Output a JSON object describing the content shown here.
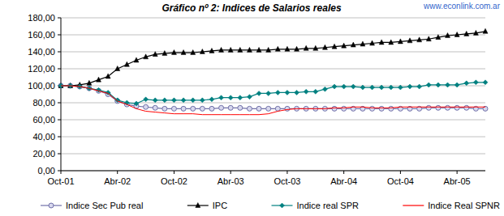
{
  "chart_data": {
    "type": "line",
    "title": "Gráfico nº 2: Indices de Salarios reales",
    "annotations": [
      {
        "text": "www.econlink.com.ar"
      }
    ],
    "categories": [
      "Oct-01",
      null,
      null,
      null,
      null,
      null,
      "Abr-02",
      null,
      null,
      null,
      null,
      null,
      "Oct-02",
      null,
      null,
      null,
      null,
      null,
      "Abr-03",
      null,
      null,
      null,
      null,
      null,
      "Oct-03",
      null,
      null,
      null,
      null,
      null,
      "Abr-04",
      null,
      null,
      null,
      null,
      null,
      "Oct-04",
      null,
      null,
      null,
      null,
      null,
      "Abr-05",
      null,
      null,
      null
    ],
    "series": [
      {
        "name": "Indice Sec Pub real",
        "color": "#7070a8",
        "marker": "circle",
        "line_style": "solid",
        "values": [
          100,
          100,
          99,
          97,
          94,
          90,
          82,
          78,
          76,
          75,
          74,
          73,
          73,
          73,
          73,
          73,
          73,
          74,
          74,
          74,
          73,
          73,
          73,
          73,
          73,
          73,
          73,
          73,
          73,
          73,
          73,
          73,
          73,
          73,
          73,
          73,
          73,
          73,
          73,
          74,
          74,
          74,
          74,
          74,
          73,
          73
        ]
      },
      {
        "name": "IPC",
        "color": "#000000",
        "marker": "triangle",
        "line_style": "solid",
        "values": [
          100,
          100,
          101,
          103,
          107,
          111,
          120,
          125,
          130,
          134,
          137,
          138,
          139,
          139,
          139,
          140,
          141,
          142,
          142,
          142,
          142,
          142,
          142,
          143,
          143,
          143,
          144,
          144,
          145,
          146,
          147,
          148,
          149,
          150,
          151,
          151,
          152,
          153,
          154,
          155,
          157,
          159,
          160,
          161,
          162,
          164
        ]
      },
      {
        "name": "Indice real SPR",
        "color": "#008080",
        "marker": "diamond",
        "line_style": "solid",
        "values": [
          100,
          100,
          99,
          97,
          95,
          92,
          83,
          80,
          79,
          84,
          83,
          83,
          83,
          83,
          83,
          83,
          84,
          86,
          86,
          86,
          87,
          91,
          91,
          92,
          92,
          92,
          93,
          93,
          96,
          99,
          99,
          99,
          98,
          98,
          98,
          98,
          98,
          99,
          99,
          101,
          101,
          101,
          101,
          103,
          104,
          104
        ]
      },
      {
        "name": "Indice Real SPNR",
        "color": "#ff0000",
        "marker": "none",
        "line_style": "solid",
        "values": [
          100,
          100,
          99,
          97,
          94,
          91,
          82,
          78,
          73,
          70,
          69,
          68,
          67,
          67,
          67,
          66,
          66,
          66,
          66,
          66,
          66,
          66,
          67,
          70,
          72,
          73,
          73,
          73,
          73,
          74,
          74,
          75,
          75,
          74,
          74,
          74,
          75,
          75,
          75,
          75,
          75,
          75,
          75,
          75,
          75,
          75
        ]
      }
    ],
    "ylim": [
      0,
      180
    ],
    "yticks": [
      {
        "value": 0,
        "label": "0,00"
      },
      {
        "value": 20,
        "label": "20,00"
      },
      {
        "value": 40,
        "label": "40,00"
      },
      {
        "value": 60,
        "label": "60,00"
      },
      {
        "value": 80,
        "label": "80,00"
      },
      {
        "value": 100,
        "label": "100,00"
      },
      {
        "value": 120,
        "label": "120,00"
      },
      {
        "value": 140,
        "label": "140,00"
      },
      {
        "value": 160,
        "label": "160,00"
      },
      {
        "value": 180,
        "label": "180,00"
      }
    ],
    "grid": true,
    "legend": "bottom"
  }
}
